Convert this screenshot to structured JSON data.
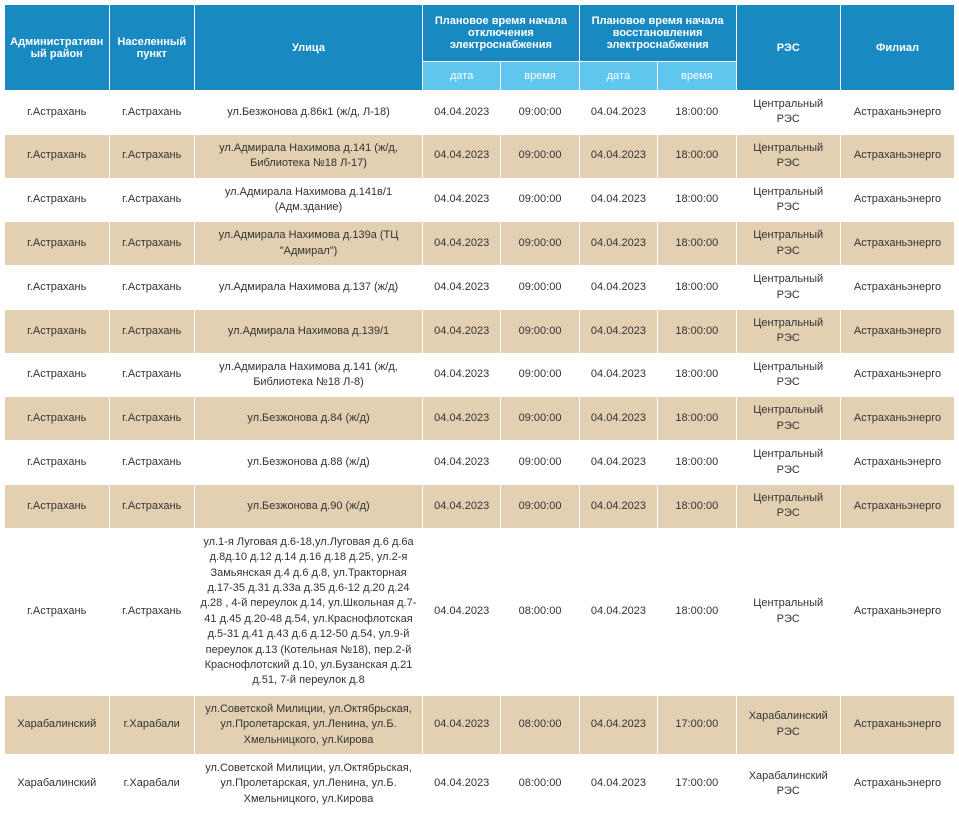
{
  "colors": {
    "header_bg": "#1989c2",
    "subheader_bg": "#5fc6ee",
    "header_text": "#ffffff",
    "row_even_bg": "#ffffff",
    "row_odd_bg": "#e3d0b3",
    "cell_text": "#333333",
    "border": "#ffffff"
  },
  "fonts": {
    "family": "Arial, sans-serif",
    "header_size": 11,
    "cell_size": 11
  },
  "columns": {
    "district": "Административный район",
    "settlement": "Населенный пункт",
    "street": "Улица",
    "off_start": "Плановое время начала отключения электроснабжения",
    "on_start": "Плановое время начала восстановления электроснабжения",
    "res": "РЭС",
    "branch": "Филиал",
    "sub_date": "дата",
    "sub_time": "время"
  },
  "rows": [
    {
      "district": "г.Астрахань",
      "settlement": "г.Астрахань",
      "street": "ул.Безжонова д.86к1 (ж/д, Л-18)",
      "off_date": "04.04.2023",
      "off_time": "09:00:00",
      "on_date": "04.04.2023",
      "on_time": "18:00:00",
      "res": "Центральный РЭС",
      "branch": "Астраханьэнерго"
    },
    {
      "district": "г.Астрахань",
      "settlement": "г.Астрахань",
      "street": "ул.Адмирала Нахимова д.141 (ж/д, Библиотека №18 Л-17)",
      "off_date": "04.04.2023",
      "off_time": "09:00:00",
      "on_date": "04.04.2023",
      "on_time": "18:00:00",
      "res": "Центральный РЭС",
      "branch": "Астраханьэнерго"
    },
    {
      "district": "г.Астрахань",
      "settlement": "г.Астрахань",
      "street": "ул.Адмирала Нахимова д.141в/1 (Адм.здание)",
      "off_date": "04.04.2023",
      "off_time": "09:00:00",
      "on_date": "04.04.2023",
      "on_time": "18:00:00",
      "res": "Центральный РЭС",
      "branch": "Астраханьэнерго"
    },
    {
      "district": "г.Астрахань",
      "settlement": "г.Астрахань",
      "street": "ул.Адмирала Нахимова д.139а (ТЦ \"Адмирал\")",
      "off_date": "04.04.2023",
      "off_time": "09:00:00",
      "on_date": "04.04.2023",
      "on_time": "18:00:00",
      "res": "Центральный РЭС",
      "branch": "Астраханьэнерго"
    },
    {
      "district": "г.Астрахань",
      "settlement": "г.Астрахань",
      "street": "ул.Адмирала Нахимова д.137 (ж/д)",
      "off_date": "04.04.2023",
      "off_time": "09:00:00",
      "on_date": "04.04.2023",
      "on_time": "18:00:00",
      "res": "Центральный РЭС",
      "branch": "Астраханьэнерго"
    },
    {
      "district": "г.Астрахань",
      "settlement": "г.Астрахань",
      "street": "ул.Адмирала Нахимова д.139/1",
      "off_date": "04.04.2023",
      "off_time": "09:00:00",
      "on_date": "04.04.2023",
      "on_time": "18:00:00",
      "res": "Центральный РЭС",
      "branch": "Астраханьэнерго"
    },
    {
      "district": "г.Астрахань",
      "settlement": "г.Астрахань",
      "street": "ул.Адмирала Нахимова д.141 (ж/д, Библиотека №18 Л-8)",
      "off_date": "04.04.2023",
      "off_time": "09:00:00",
      "on_date": "04.04.2023",
      "on_time": "18:00:00",
      "res": "Центральный РЭС",
      "branch": "Астраханьэнерго"
    },
    {
      "district": "г.Астрахань",
      "settlement": "г.Астрахань",
      "street": "ул.Безжонова д.84 (ж/д)",
      "off_date": "04.04.2023",
      "off_time": "09:00:00",
      "on_date": "04.04.2023",
      "on_time": "18:00:00",
      "res": "Центральный РЭС",
      "branch": "Астраханьэнерго"
    },
    {
      "district": "г.Астрахань",
      "settlement": "г.Астрахань",
      "street": "ул.Безжонова д.88 (ж/д)",
      "off_date": "04.04.2023",
      "off_time": "09:00:00",
      "on_date": "04.04.2023",
      "on_time": "18:00:00",
      "res": "Центральный РЭС",
      "branch": "Астраханьэнерго"
    },
    {
      "district": "г.Астрахань",
      "settlement": "г.Астрахань",
      "street": "ул.Безжонова д.90 (ж/д)",
      "off_date": "04.04.2023",
      "off_time": "09:00:00",
      "on_date": "04.04.2023",
      "on_time": "18:00:00",
      "res": "Центральный РЭС",
      "branch": "Астраханьэнерго"
    },
    {
      "district": "г.Астрахань",
      "settlement": "г.Астрахань",
      "street": "ул.1-я Луговая д.6-18,ул.Луговая д.6 д.6а д.8д.10 д.12 д.14 д.16 д.18 д.25, ул.2-я Замьянская д.4 д.6 д.8, ул.Тракторная д.17-35 д.31 д.33а д.35 д.6-12 д.20 д.24 д.28 , 4-й переулок д.14, ул.Школьная д.7-41 д.45 д.20-48 д.54, ул.Краснофлотская д.5-31 д.41 д.43 д.6 д.12-50 д.54, ул.9-й переулок д.13 (Котельная №18), пер.2-й Краснофлотский д.10, ул.Бузанская д.21 д.51, 7-й переулок д.8",
      "off_date": "04.04.2023",
      "off_time": "08:00:00",
      "on_date": "04.04.2023",
      "on_time": "18:00:00",
      "res": "Центральный РЭС",
      "branch": "Астраханьэнерго"
    },
    {
      "district": "Харабалинский",
      "settlement": "г.Харабали",
      "street": "ул.Советской Милиции, ул.Октябрьская, ул.Пролетарская, ул.Ленина, ул.Б. Хмельницкого, ул.Кирова",
      "off_date": "04.04.2023",
      "off_time": "08:00:00",
      "on_date": "04.04.2023",
      "on_time": "17:00:00",
      "res": "Харабалинский РЭС",
      "branch": "Астраханьэнерго"
    },
    {
      "district": "Харабалинский",
      "settlement": "г.Харабали",
      "street": "ул.Советской Милиции, ул.Октябрьская, ул.Пролетарская, ул.Ленина, ул.Б. Хмельницкого, ул.Кирова",
      "off_date": "04.04.2023",
      "off_time": "08:00:00",
      "on_date": "04.04.2023",
      "on_time": "17:00:00",
      "res": "Харабалинский РЭС",
      "branch": "Астраханьэнерго"
    }
  ]
}
